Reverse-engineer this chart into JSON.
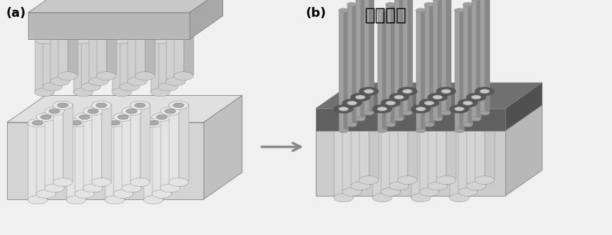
{
  "bg_color": "#f0f0f0",
  "label_a": "(a)",
  "label_b": "(b)",
  "title_b": "金属沉积",
  "figsize": [
    8.72,
    3.36
  ],
  "dpi": 100,
  "stamp_top": "#c8c8c8",
  "stamp_front": "#b8b8b8",
  "stamp_right": "#a8a8a8",
  "mold_top": "#e0e0e0",
  "mold_front": "#d4d4d4",
  "mold_right": "#c0c0c0",
  "pillar_top": "#d0d0d0",
  "pillar_side_l": "#c8c8c8",
  "pillar_side_r": "#b8b8b8",
  "metal_top": "#707070",
  "metal_front": "#606060",
  "metal_right": "#505050",
  "sub_top": "#d8d8d8",
  "sub_front": "#cccccc",
  "sub_right": "#b8b8b8",
  "rod_side": "#909090",
  "rod_top": "#a0a0a0",
  "hole_dark": "#888888",
  "hole_inner": "#c0c0c0",
  "arrow_col": "#888888",
  "edge_col": "#808080",
  "lw": 0.6
}
